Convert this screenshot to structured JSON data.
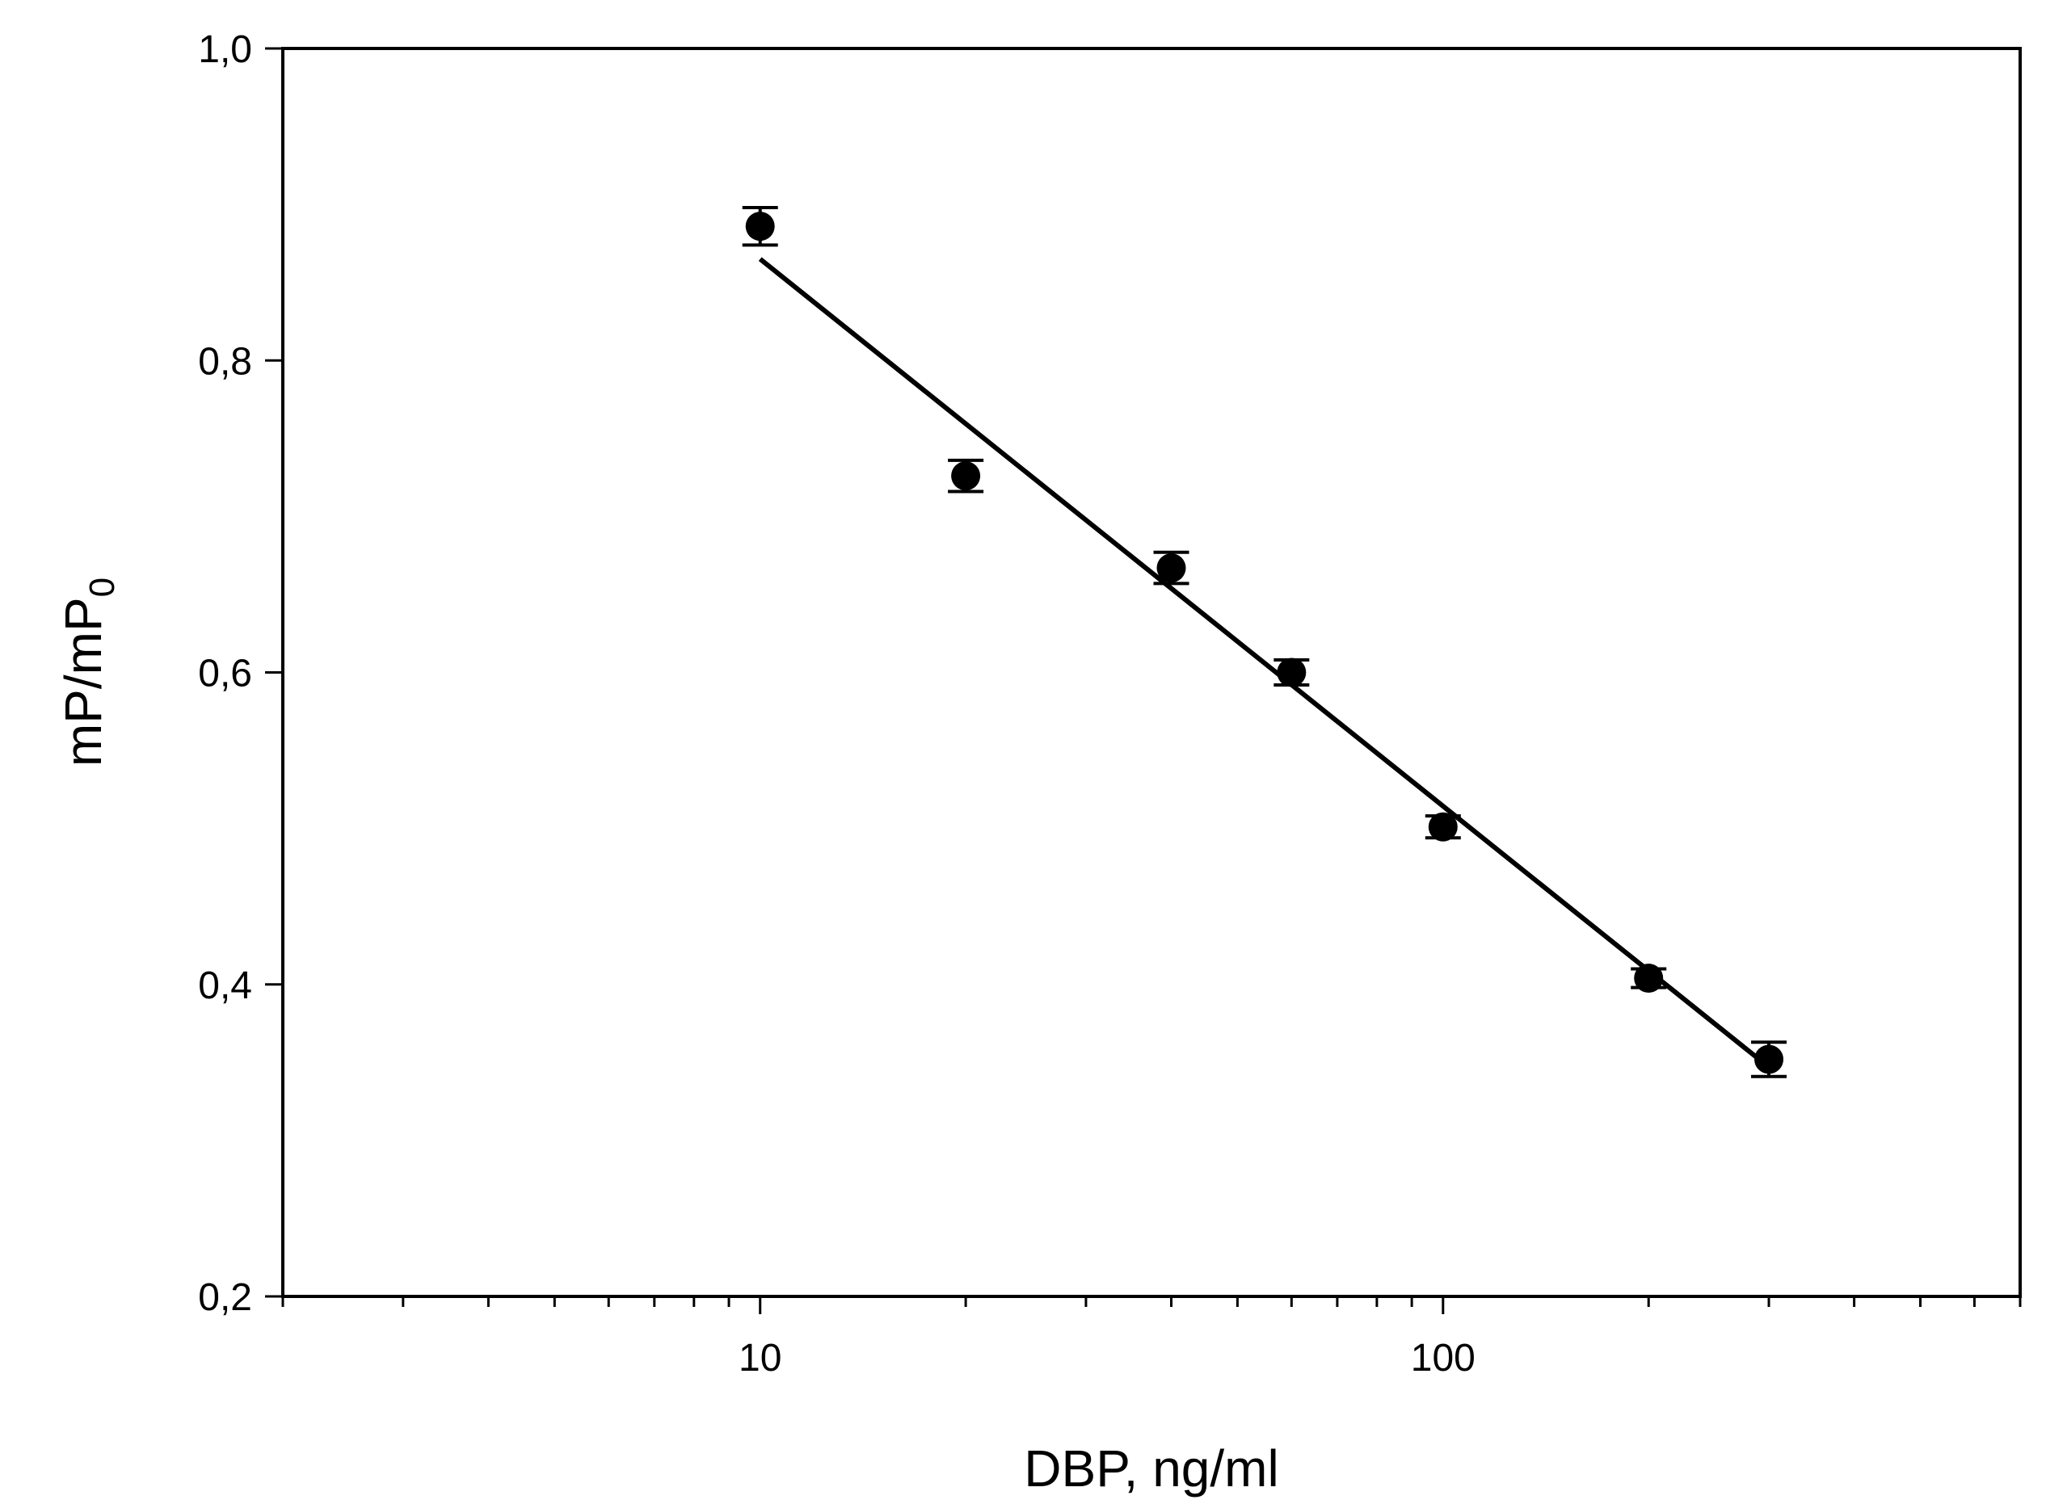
{
  "chart_data": {
    "type": "scatter",
    "title": "",
    "xlabel": "DBP, ng/ml",
    "ylabel_main": "mP/mP",
    "ylabel_sub": "0",
    "x_scale": "log",
    "xlim": [
      2,
      700
    ],
    "ylim": [
      0.2,
      1.0
    ],
    "x_tick_labels": [
      {
        "value": 10,
        "text": "10"
      },
      {
        "value": 100,
        "text": "100"
      }
    ],
    "y_tick_labels": [
      {
        "value": 0.2,
        "text": "0,2"
      },
      {
        "value": 0.4,
        "text": "0,4"
      },
      {
        "value": 0.6,
        "text": "0,6"
      },
      {
        "value": 0.8,
        "text": "0,8"
      },
      {
        "value": 1.0,
        "text": "1,0"
      }
    ],
    "grid": false,
    "series": [
      {
        "points": [
          {
            "x": 10,
            "y": 0.886,
            "err": 0.012
          },
          {
            "x": 20,
            "y": 0.726,
            "err": 0.01
          },
          {
            "x": 40,
            "y": 0.667,
            "err": 0.01
          },
          {
            "x": 60,
            "y": 0.6,
            "err": 0.008
          },
          {
            "x": 100,
            "y": 0.501,
            "err": 0.007
          },
          {
            "x": 200,
            "y": 0.404,
            "err": 0.006
          },
          {
            "x": 300,
            "y": 0.352,
            "err": 0.011
          }
        ],
        "color": "#000000"
      }
    ],
    "fit_line": {
      "x": [
        10,
        300
      ],
      "y": [
        0.865,
        0.347
      ]
    }
  }
}
